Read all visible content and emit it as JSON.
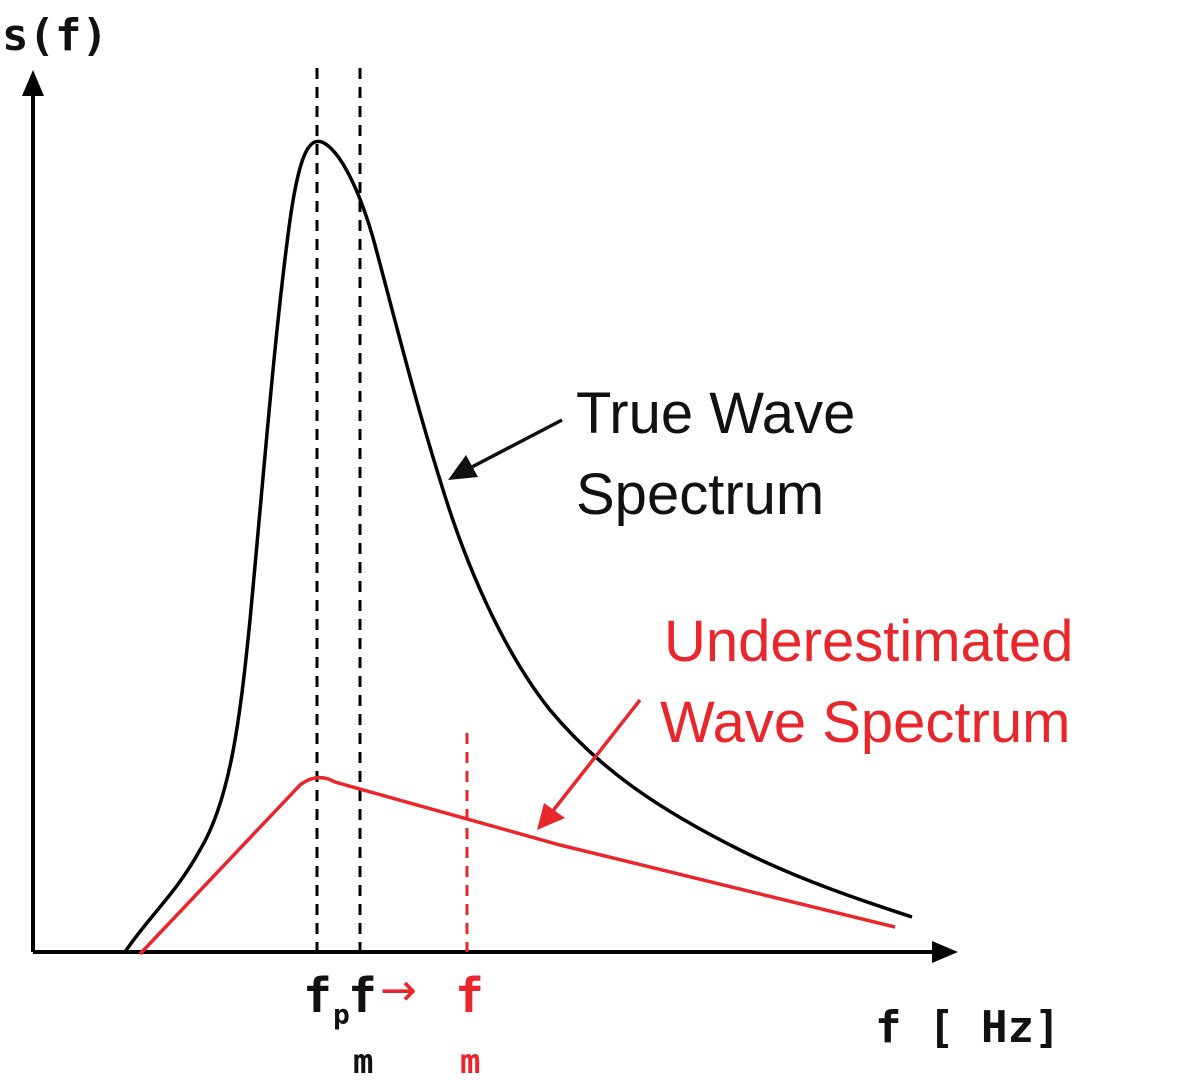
{
  "diagram": {
    "y_axis_label": "s(f)",
    "x_axis_label": "f [ Hz]",
    "ticks": {
      "fp_main": "f",
      "fp_sub": "p",
      "fm_main": "f",
      "fm_sub": "m",
      "arrow_glyph": "→",
      "fm2_main": "f",
      "fm2_sub": "m"
    },
    "annotations": {
      "true_line1": "True Wave",
      "true_line2": "Spectrum",
      "under_line1": "Underestimated",
      "under_line2": "Wave Spectrum"
    },
    "curves": [
      {
        "name": "true-wave-spectrum",
        "color": "#000000"
      },
      {
        "name": "underestimated-wave-spectrum",
        "color": "#e8262b"
      }
    ],
    "colors": {
      "axis": "#000000",
      "accent": "#e8262b",
      "text": "#111111"
    }
  }
}
